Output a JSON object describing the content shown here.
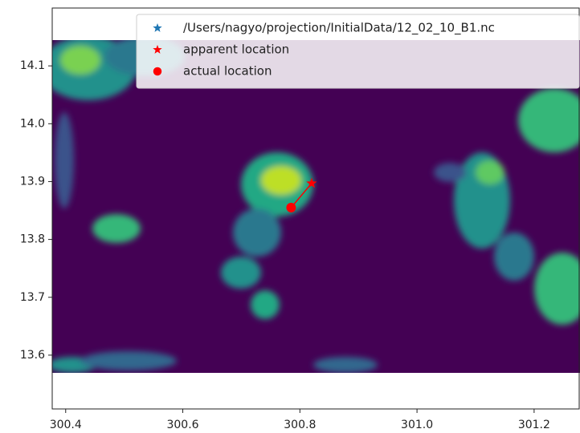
{
  "chart_data": {
    "type": "scatter",
    "xlim": [
      300.377,
      301.277
    ],
    "ylim": [
      13.507,
      14.2
    ],
    "xticks": [
      300.4,
      300.6,
      300.8,
      {
        "value": 301,
        "label": "301.0"
      },
      301.2
    ],
    "yticks": [
      13.6,
      13.7,
      13.8,
      13.9,
      {
        "value": 14,
        "label": "14.0"
      },
      14.1
    ],
    "legend": "upper right",
    "series": [
      {
        "name": "/Users/nagyo/projection/InitialData/12_02_10_B1.nc",
        "color": "#1f77b4",
        "marker": "star",
        "x": [],
        "y": []
      },
      {
        "name": "apparent location",
        "color": "red",
        "marker": "star",
        "x": [
          300.82
        ],
        "y": [
          13.897
        ]
      },
      {
        "name": "actual location",
        "color": "red",
        "marker": "circle",
        "x": [
          300.785
        ],
        "y": [
          13.855
        ]
      },
      {
        "color": "red",
        "marker": "line",
        "x": [
          300.82,
          300.785
        ],
        "y": [
          13.897,
          13.855
        ]
      }
    ]
  }
}
